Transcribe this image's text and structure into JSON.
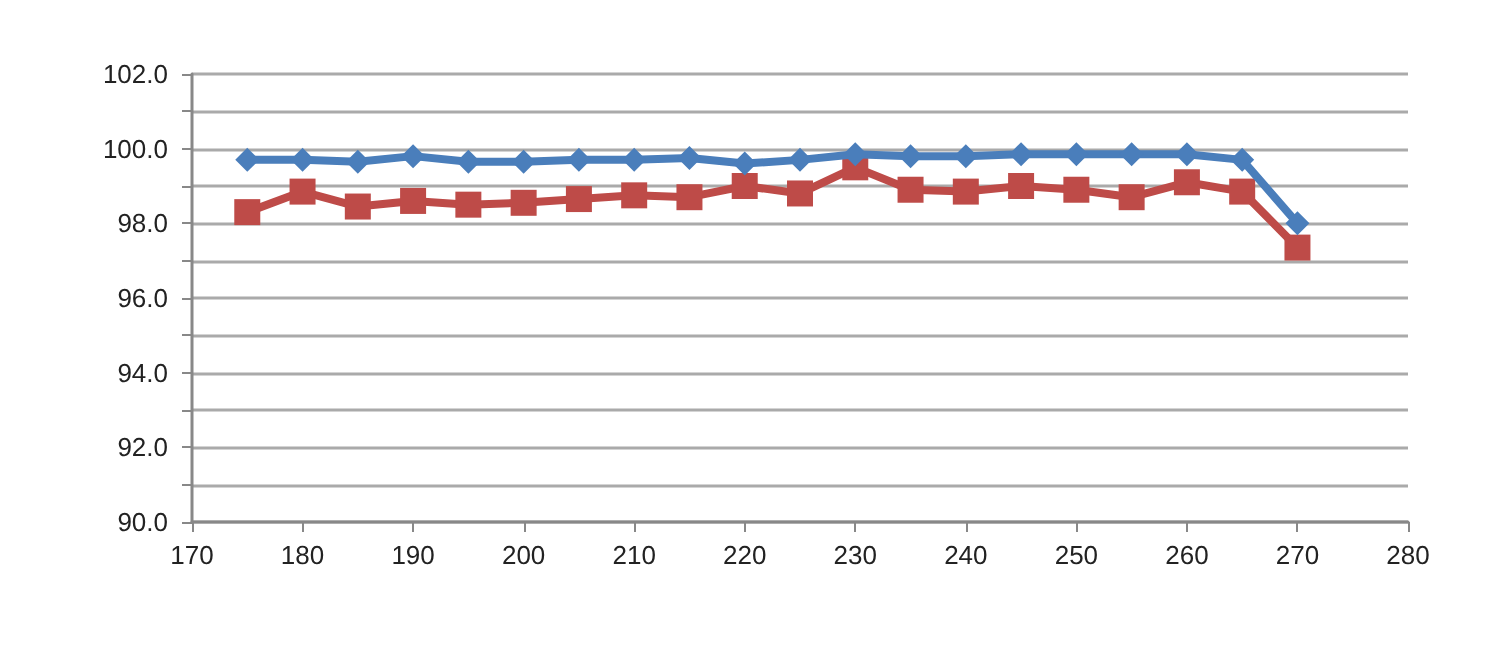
{
  "chart_data": {
    "type": "line",
    "x": [
      175,
      180,
      185,
      190,
      195,
      200,
      205,
      210,
      215,
      220,
      225,
      230,
      235,
      240,
      245,
      250,
      255,
      260,
      265,
      270
    ],
    "series": [
      {
        "color": "#4a7ebb",
        "marker": "diamond",
        "values": [
          99.7,
          99.7,
          99.65,
          99.8,
          99.65,
          99.65,
          99.7,
          99.7,
          99.75,
          99.6,
          99.7,
          99.85,
          99.8,
          99.8,
          99.85,
          99.85,
          99.85,
          99.85,
          99.7,
          98.0
        ]
      },
      {
        "color": "#be4b48",
        "marker": "square",
        "values": [
          98.3,
          98.85,
          98.45,
          98.6,
          98.5,
          98.55,
          98.65,
          98.75,
          98.7,
          99.0,
          98.8,
          99.5,
          98.9,
          98.85,
          99.0,
          98.9,
          98.7,
          99.1,
          98.85,
          97.35
        ]
      }
    ],
    "xlim": [
      170,
      280
    ],
    "xticks": [
      170,
      180,
      190,
      200,
      210,
      220,
      230,
      240,
      250,
      260,
      270,
      280
    ],
    "ylim": [
      90,
      102
    ],
    "yticks": [
      {
        "value": 90,
        "label": "90.0"
      },
      {
        "value": 91,
        "label": null
      },
      {
        "value": 92,
        "label": "92.0"
      },
      {
        "value": 93,
        "label": null
      },
      {
        "value": 94,
        "label": "94.0"
      },
      {
        "value": 95,
        "label": null
      },
      {
        "value": 96,
        "label": "96.0"
      },
      {
        "value": 97,
        "label": null
      },
      {
        "value": 98,
        "label": "98.0"
      },
      {
        "value": 99,
        "label": null
      },
      {
        "value": 100,
        "label": "100.0"
      },
      {
        "value": 101,
        "label": null
      },
      {
        "value": 102,
        "label": "102.0"
      }
    ],
    "grid": "y",
    "line_style": "solid"
  }
}
